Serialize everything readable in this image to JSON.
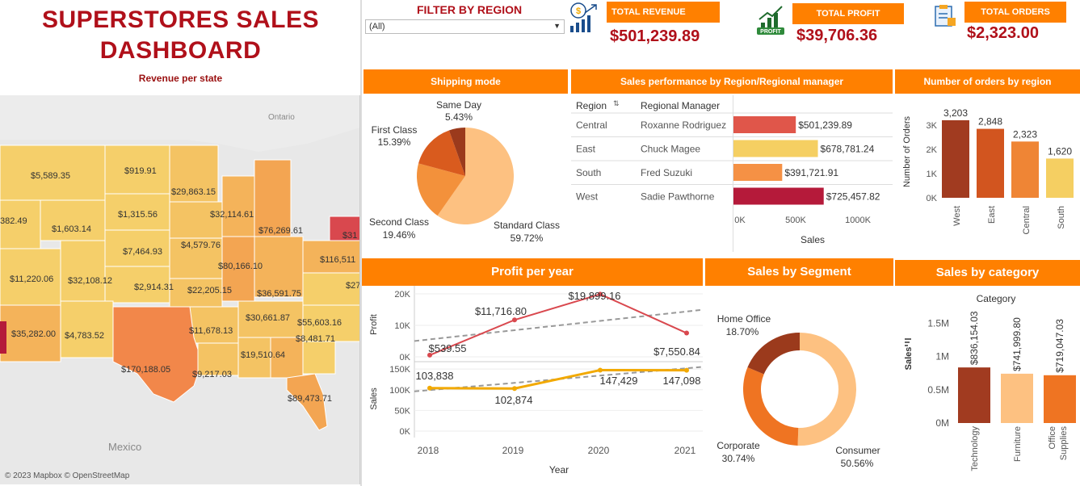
{
  "dashboard": {
    "title_line1": "SUPERSTORES SALES",
    "title_line2": "DASHBOARD",
    "map_subtitle": "Revenue per state"
  },
  "filter": {
    "label": "FILTER BY REGION",
    "selected": "(All)"
  },
  "kpis": {
    "revenue": {
      "label": "TOTAL REVENUE",
      "value": "$501,239.89"
    },
    "profit": {
      "label": "TOTAL PROFIT",
      "value": "$39,706.36"
    },
    "orders": {
      "label": "TOTAL ORDERS",
      "value": "$2,323.00"
    }
  },
  "map": {
    "labels": [
      "$5,589.35",
      "$919.91",
      "$29,863.15",
      "382.49",
      "$1,603.14",
      "$1,315.56",
      "$32,114.61",
      "$76,269.61",
      "$31",
      "$7,464.93",
      "$4,579.76",
      "$116,511",
      "$11,220.06",
      "$32,108.12",
      "$2,914.31",
      "$22,205.15",
      "$80,166.10",
      "$36,591.75",
      "$27",
      "$35,282.00",
      "$4,783.52",
      "$11,678.13",
      "$30,661.87",
      "$55,603.16",
      "$8,481.71",
      "$19,510.64",
      "$170,188.05",
      "$9,217.03",
      "$89,473.71"
    ],
    "place_ontario": "Ontario",
    "place_mexico": "Mexico",
    "copyright": "© 2023 Mapbox © OpenStreetMap"
  },
  "shipping": {
    "title": "Shipping mode",
    "slices": [
      {
        "name": "Standard Class",
        "pct": "59.72%",
        "value": 59.72,
        "color": "#fdc181"
      },
      {
        "name": "Second Class",
        "pct": "19.46%",
        "value": 19.46,
        "color": "#f3913b"
      },
      {
        "name": "First Class",
        "pct": "15.39%",
        "value": 15.39,
        "color": "#d95b1e"
      },
      {
        "name": "Same Day",
        "pct": "5.43%",
        "value": 5.43,
        "color": "#9b3a1c"
      }
    ]
  },
  "region_perf": {
    "title": "Sales performance by Region/Regional manager",
    "col_region": "Region",
    "col_manager": "Regional Manager",
    "axis_label": "Sales",
    "ticks": [
      "0K",
      "500K",
      "1000K"
    ],
    "rows": [
      {
        "region": "Central",
        "manager": "Roxanne Rodriguez",
        "label": "$501,239.89",
        "value": 501239.89,
        "color": "#e0564a"
      },
      {
        "region": "East",
        "manager": "Chuck Magee",
        "label": "$678,781.24",
        "value": 678781.24,
        "color": "#f5cf62"
      },
      {
        "region": "South",
        "manager": "Fred Suzuki",
        "label": "$391,721.91",
        "value": 391721.91,
        "color": "#f59145"
      },
      {
        "region": "West",
        "manager": "Sadie Pawthorne",
        "label": "$725,457.82",
        "value": 725457.82,
        "color": "#b51a3a"
      }
    ]
  },
  "orders_region": {
    "title": "Number of orders by region",
    "ylabel": "Number of Orders"
  },
  "profit_year": {
    "title": "Profit per year",
    "xlabel": "Year",
    "profit_axis": "Profit",
    "sales_axis": "Sales",
    "years": [
      "2018",
      "2019",
      "2020",
      "2021"
    ]
  },
  "segment": {
    "title": "Sales  by Segment",
    "slices": [
      {
        "name": "Consumer",
        "pct": "50.56%",
        "value": 50.56,
        "color": "#fdc181"
      },
      {
        "name": "Corporate",
        "pct": "30.74%",
        "value": 30.74,
        "color": "#ef7422"
      },
      {
        "name": "Home Office",
        "pct": "18.70%",
        "value": 18.7,
        "color": "#9b3a1c"
      }
    ]
  },
  "category": {
    "title": "Sales by category",
    "legend_title": "Category",
    "ylabel": "Sales"
  },
  "chart_data": [
    {
      "type": "bar",
      "title": "Number of orders by region",
      "ylabel": "Number of Orders",
      "categories": [
        "West",
        "East",
        "Central",
        "South"
      ],
      "values": [
        3203,
        2848,
        2323,
        1620
      ],
      "labels": [
        "3,203",
        "2,848",
        "2,323",
        "1,620"
      ],
      "colors": [
        "#a13b20",
        "#d2551f",
        "#ef8535",
        "#f5cf62"
      ],
      "yticks": [
        "0K",
        "1K",
        "2K",
        "3K"
      ],
      "ylim": [
        0,
        3500
      ]
    },
    {
      "type": "line",
      "title": "Profit per year",
      "x": [
        "2018",
        "2019",
        "2020",
        "2021"
      ],
      "series": [
        {
          "name": "Profit",
          "values": [
            539.55,
            11716.8,
            19899.16,
            7550.84
          ],
          "labels": [
            "$539.55",
            "$11,716.80",
            "$19,899.16",
            "$7,550.84"
          ],
          "color": "#d9484e",
          "yticks": [
            "0K",
            "10K",
            "20K"
          ],
          "ylim": [
            0,
            20000
          ]
        },
        {
          "name": "Sales",
          "values": [
            103838,
            102874,
            147429,
            147098
          ],
          "labels": [
            "103,838",
            "102,874",
            "147,429",
            "147,098"
          ],
          "color": "#f2a900",
          "yticks": [
            "0K",
            "50K",
            "100K",
            "150K"
          ],
          "ylim": [
            0,
            160000
          ]
        }
      ]
    },
    {
      "type": "bar",
      "title": "Sales by category",
      "ylabel": "Sales",
      "categories": [
        "Technology",
        "Furniture",
        "Office Supplies"
      ],
      "values": [
        836154.03,
        741999.8,
        719047.03
      ],
      "labels": [
        "$836,154.03",
        "$741,999.80",
        "$719,047.03"
      ],
      "colors": [
        "#a13b20",
        "#fdc181",
        "#ef7422"
      ],
      "yticks": [
        "0M",
        "0.5M",
        "1M",
        "1.5M"
      ],
      "ylim": [
        0,
        1700000
      ]
    }
  ]
}
